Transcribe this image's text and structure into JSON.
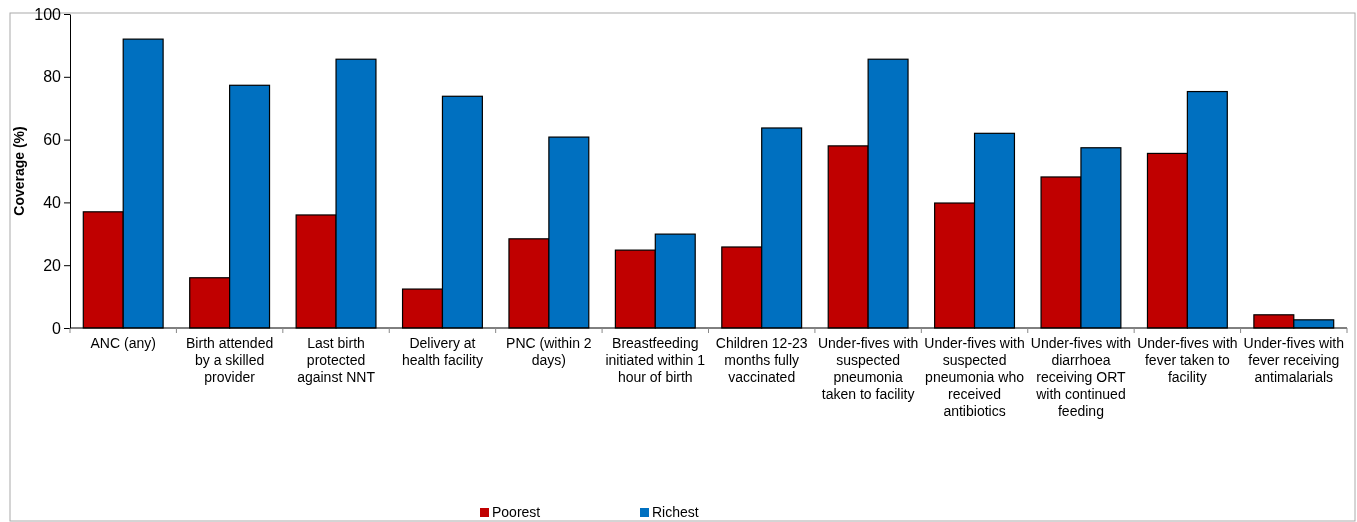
{
  "chart_data": {
    "type": "bar",
    "ylabel": "Coverage (%)",
    "categories": [
      "ANC (any)",
      "Birth attended by a skilled provider",
      "Last birth protected against NNT",
      "Delivery at health facility",
      "PNC (within 2 days)",
      "Breastfeeding initiated within 1 hour of birth",
      "Children 12-23 months fully vaccinated",
      "Under-fives with suspected pneumonia taken to facility",
      "Under-fives with suspected pneumonia who received antibiotics",
      "Under-fives with diarrhoea receiving ORT with continued feeding",
      "Under-fives with fever taken to facility",
      "Under-fives with fever receiving antimalarials"
    ],
    "series": [
      {
        "name": "Poorest",
        "color": "#c00000",
        "values": [
          37,
          16,
          36,
          12.4,
          28.4,
          24.8,
          25.8,
          58,
          39.8,
          48.1,
          55.6,
          4.2
        ]
      },
      {
        "name": "Richest",
        "color": "#0070c0",
        "values": [
          92,
          77.3,
          85.6,
          73.8,
          60.8,
          29.9,
          63.7,
          85.6,
          62,
          57.4,
          75.3,
          2.6
        ]
      }
    ],
    "ylim": [
      0,
      100
    ],
    "yticks": [
      0,
      20,
      40,
      60,
      80,
      100
    ],
    "grid": false,
    "legend": "bottom"
  }
}
